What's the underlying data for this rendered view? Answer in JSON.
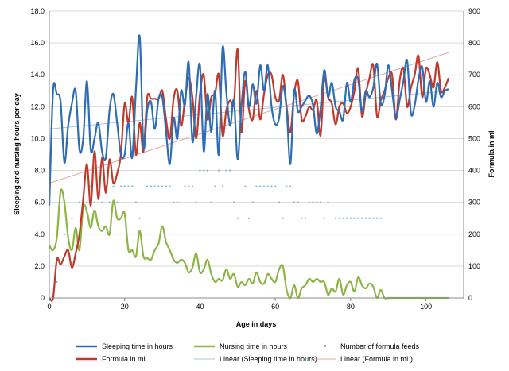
{
  "chart_data": {
    "type": "line",
    "xlabel": "Age in days",
    "ylabel": "Sleeping and nursing hours per day",
    "y2label": "Formula in ml",
    "xlim": [
      0,
      110
    ],
    "ylim": [
      0,
      18
    ],
    "y2lim": [
      0,
      900
    ],
    "xticks": [
      "0",
      "20",
      "40",
      "60",
      "80",
      "100"
    ],
    "yticks": [
      "0",
      "2.0",
      "4.0",
      "6.0",
      "8.0",
      "10.0",
      "12.0",
      "14.0",
      "16.0",
      "18.0"
    ],
    "y2ticks": [
      "0",
      "100",
      "200",
      "300",
      "400",
      "500",
      "600",
      "700",
      "800",
      "900"
    ],
    "grid": "horizontal",
    "legend_position": "bottom",
    "series": [
      {
        "name": "Sleeping time in hours",
        "color": "#2e6db4",
        "axis": "left",
        "x": [
          0,
          1,
          2,
          3,
          4,
          5,
          6,
          7,
          8,
          9,
          10,
          11,
          12,
          13,
          14,
          15,
          16,
          17,
          18,
          19,
          20,
          21,
          22,
          23,
          24,
          25,
          26,
          27,
          28,
          29,
          30,
          31,
          32,
          33,
          34,
          35,
          36,
          37,
          38,
          39,
          40,
          41,
          42,
          43,
          44,
          45,
          46,
          47,
          48,
          49,
          50,
          51,
          52,
          53,
          54,
          55,
          56,
          57,
          58,
          59,
          60,
          61,
          62,
          63,
          64,
          65,
          66,
          67,
          68,
          69,
          70,
          71,
          72,
          73,
          74,
          75,
          76,
          77,
          78,
          79,
          80,
          81,
          82,
          83,
          84,
          85,
          86,
          87,
          88,
          89,
          90,
          91,
          92,
          93,
          94,
          95,
          96,
          97,
          98,
          99,
          100,
          101,
          102,
          103,
          104,
          105,
          106
        ],
        "values": [
          5.8,
          13.0,
          12.8,
          12.3,
          8.5,
          10.8,
          12.2,
          13.0,
          9.3,
          10.0,
          13.6,
          9.3,
          10.0,
          11.0,
          9.2,
          8.8,
          11.8,
          12.8,
          11.0,
          9.0,
          9.0,
          11.0,
          8.8,
          13.1,
          16.4,
          9.5,
          11.8,
          12.3,
          10.6,
          12.5,
          12.6,
          10.4,
          8.4,
          11.3,
          10.0,
          13.0,
          12.1,
          14.8,
          9.8,
          12.7,
          14.6,
          9.2,
          12.8,
          10.4,
          13.0,
          9.0,
          15.7,
          12.9,
          10.8,
          12.4,
          8.7,
          12.0,
          14.2,
          12.0,
          13.4,
          12.2,
          14.6,
          13.0,
          14.6,
          12.0,
          10.9,
          11.3,
          13.3,
          11.8,
          8.4,
          13.0,
          11.7,
          12.0,
          12.4,
          12.7,
          12.1,
          10.3,
          11.9,
          14.3,
          12.6,
          13.5,
          12.0,
          11.7,
          11.2,
          13.5,
          12.3,
          13.7,
          13.7,
          11.7,
          13.0,
          12.6,
          13.2,
          14.7,
          12.2,
          12.7,
          14.6,
          13.0,
          11.3,
          12.4,
          13.6,
          14.9,
          11.6,
          12.1,
          13.7,
          14.5,
          12.3,
          13.6,
          12.0,
          13.5,
          12.6,
          13.0,
          13.1
        ]
      },
      {
        "name": "Formula in mL",
        "color": "#c0392b",
        "axis": "right",
        "x": [
          0,
          1,
          2,
          3,
          4,
          5,
          6,
          7,
          8,
          9,
          10,
          11,
          12,
          13,
          14,
          15,
          16,
          17,
          18,
          19,
          20,
          21,
          22,
          23,
          24,
          25,
          26,
          27,
          28,
          29,
          30,
          31,
          32,
          33,
          34,
          35,
          36,
          37,
          38,
          39,
          40,
          41,
          42,
          43,
          44,
          45,
          46,
          47,
          48,
          49,
          50,
          51,
          52,
          53,
          54,
          55,
          56,
          57,
          58,
          59,
          60,
          61,
          62,
          63,
          64,
          65,
          66,
          67,
          68,
          69,
          70,
          71,
          72,
          73,
          74,
          75,
          76,
          77,
          78,
          79,
          80,
          81,
          82,
          83,
          84,
          85,
          86,
          87,
          88,
          89,
          90,
          91,
          92,
          93,
          94,
          95,
          96,
          97,
          98,
          99,
          100,
          101,
          102,
          103,
          104,
          105,
          106
        ],
        "values": [
          0,
          0,
          120,
          105,
          130,
          150,
          95,
          140,
          200,
          310,
          420,
          290,
          460,
          310,
          440,
          330,
          435,
          360,
          390,
          450,
          610,
          550,
          630,
          450,
          550,
          460,
          630,
          625,
          625,
          625,
          650,
          560,
          500,
          625,
          650,
          540,
          620,
          690,
          630,
          500,
          640,
          700,
          560,
          630,
          640,
          700,
          510,
          590,
          620,
          610,
          780,
          520,
          680,
          590,
          560,
          650,
          560,
          640,
          700,
          700,
          630,
          620,
          700,
          600,
          520,
          640,
          680,
          560,
          570,
          600,
          590,
          620,
          510,
          690,
          630,
          610,
          545,
          600,
          610,
          580,
          600,
          650,
          720,
          570,
          640,
          690,
          730,
          570,
          620,
          650,
          690,
          700,
          560,
          680,
          720,
          600,
          660,
          700,
          760,
          630,
          720,
          700,
          660,
          740,
          650,
          660,
          690
        ]
      },
      {
        "name": "Nursing time in hours",
        "color": "#8db446",
        "axis": "left",
        "x": [
          0,
          1,
          2,
          3,
          4,
          5,
          6,
          7,
          8,
          9,
          10,
          11,
          12,
          13,
          14,
          15,
          16,
          17,
          18,
          19,
          20,
          21,
          22,
          23,
          24,
          25,
          26,
          27,
          28,
          29,
          30,
          31,
          32,
          33,
          34,
          35,
          36,
          37,
          38,
          39,
          40,
          41,
          42,
          43,
          44,
          45,
          46,
          47,
          48,
          49,
          50,
          51,
          52,
          53,
          54,
          55,
          56,
          57,
          58,
          59,
          60,
          61,
          62,
          63,
          64,
          65,
          66,
          67,
          68,
          69,
          70,
          71,
          72,
          73,
          74,
          75,
          76,
          77,
          78,
          79,
          80,
          81,
          82,
          83,
          84,
          85,
          86,
          87,
          88,
          89,
          90,
          91,
          92,
          93,
          94,
          95,
          96,
          97,
          98,
          99,
          100,
          101,
          102,
          103,
          104,
          105,
          106
        ],
        "values": [
          3.3,
          3.0,
          3.8,
          6.7,
          6.0,
          3.8,
          3.0,
          4.4,
          3.0,
          5.7,
          5.4,
          4.4,
          5.5,
          4.5,
          4.2,
          4.5,
          4.0,
          6.1,
          5.0,
          5.0,
          5.3,
          3.0,
          3.0,
          2.6,
          4.2,
          2.6,
          2.5,
          2.4,
          3.0,
          3.4,
          4.5,
          3.5,
          3.0,
          2.4,
          2.2,
          2.4,
          2.2,
          1.6,
          1.9,
          2.8,
          1.6,
          1.8,
          2.4,
          1.5,
          1.0,
          1.2,
          1.1,
          1.8,
          1.2,
          1.5,
          0.7,
          1.0,
          0.8,
          1.2,
          0.9,
          1.6,
          1.0,
          0.9,
          1.5,
          1.2,
          1.0,
          1.8,
          2.0,
          0.5,
          0.0,
          0.8,
          0.0,
          0.6,
          0.8,
          1.2,
          1.0,
          1.2,
          1.0,
          1.0,
          0.2,
          0.6,
          0.4,
          1.2,
          0.2,
          0.8,
          1.0,
          0.4,
          1.3,
          0.8,
          0.6,
          0.9,
          0.7,
          0.0,
          0.5,
          0.0,
          0.0,
          0.0,
          0.0,
          0.0,
          0.0,
          0.0,
          0.0,
          0.0,
          0.0,
          0.0,
          0.0,
          0.0,
          0.0,
          0.0,
          0.0,
          0.0,
          0.0
        ]
      },
      {
        "name": "Number of formula feeds",
        "color": "#7fb6d6",
        "type": "scatter",
        "axis": "left",
        "x": [
          1,
          2,
          4,
          6,
          8,
          9,
          10,
          11,
          12,
          14,
          15,
          16,
          17,
          18,
          19,
          20,
          21,
          22,
          23,
          24,
          26,
          27,
          28,
          29,
          30,
          31,
          32,
          33,
          34,
          36,
          37,
          38,
          39,
          40,
          41,
          42,
          43,
          44,
          45,
          46,
          47,
          48,
          49,
          50,
          52,
          53,
          54,
          55,
          56,
          57,
          58,
          59,
          60,
          61,
          62,
          63,
          64,
          65,
          66,
          67,
          68,
          69,
          70,
          71,
          72,
          73,
          74,
          76,
          77,
          78,
          79,
          80,
          81,
          82,
          83,
          84,
          85,
          86,
          87,
          88
        ],
        "values": [
          3,
          1,
          4,
          5,
          6,
          6,
          6,
          7,
          6,
          6,
          7,
          6,
          7,
          6,
          7,
          7,
          7,
          7,
          6,
          5,
          7,
          7,
          7,
          7,
          7,
          7,
          7,
          6,
          6,
          7,
          7,
          7,
          6,
          8,
          8,
          8,
          6,
          7,
          8,
          7,
          8,
          8,
          6,
          5,
          7,
          5,
          6,
          7,
          7,
          7,
          7,
          7,
          7,
          6,
          5,
          7,
          7,
          6,
          6,
          5,
          5,
          6,
          6,
          6,
          6,
          5,
          6,
          5,
          5,
          5,
          5,
          5,
          5,
          5,
          5,
          5,
          5,
          5,
          5,
          5
        ]
      },
      {
        "name": "Linear (Sleeping time in hours)",
        "color": "#a8c8e4",
        "type": "trend",
        "axis": "left",
        "x": [
          0,
          106
        ],
        "values": [
          10.6,
          13.0
        ]
      },
      {
        "name": "Linear (Formula in mL)",
        "color": "#e0a8a8",
        "type": "trend",
        "axis": "right",
        "x": [
          0,
          106
        ],
        "values": [
          360,
          770
        ]
      }
    ],
    "legend": [
      {
        "name": "Sleeping time in hours",
        "kind": "line",
        "color": "#2e6db4"
      },
      {
        "name": "Nursing time in hours",
        "kind": "line",
        "color": "#8db446"
      },
      {
        "name": "Number of formula feeds",
        "kind": "dot",
        "color": "#7fb6d6"
      },
      {
        "name": "Formula in mL",
        "kind": "line",
        "color": "#c0392b"
      },
      {
        "name": "Linear (Sleeping time in hours)",
        "kind": "thin",
        "color": "#a8c8e4"
      },
      {
        "name": "Linear (Formula in mL)",
        "kind": "thin",
        "color": "#e0a8a8"
      }
    ]
  }
}
